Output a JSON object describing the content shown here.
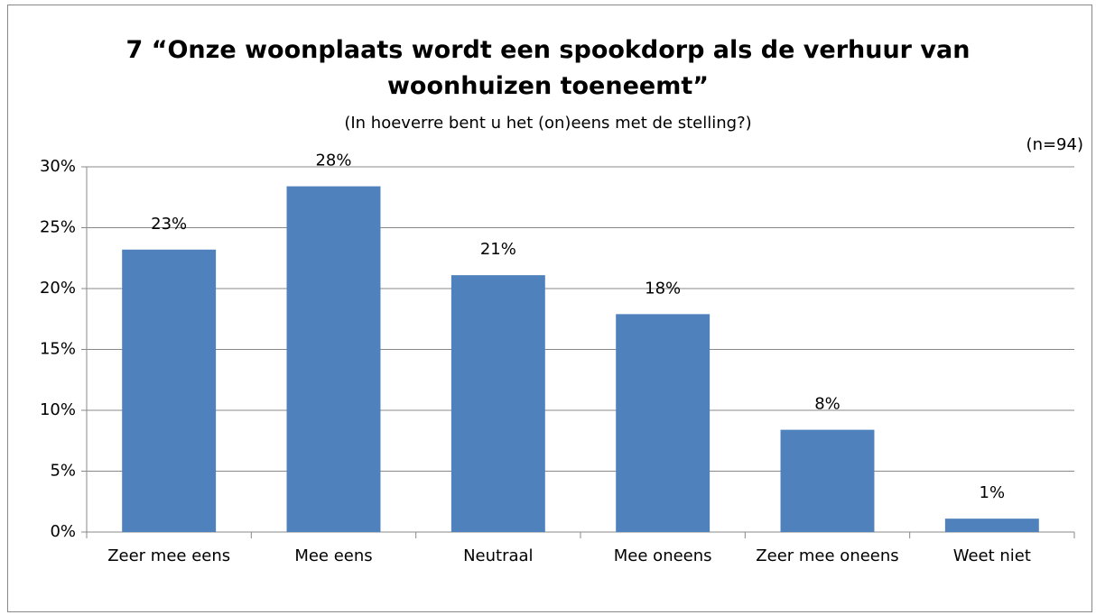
{
  "chart_data": {
    "type": "bar",
    "title": "7 “Onze woonplaats wordt een spookdorp als de verhuur van woonhuizen toeneemt”",
    "subtitle": "(In hoeverre bent u het (on)eens met de stelling?)",
    "annotation": "(n=94)",
    "categories": [
      "Zeer mee eens",
      "Mee eens",
      "Neutraal",
      "Mee oneens",
      "Zeer mee oneens",
      "Weet niet"
    ],
    "values": [
      23.2,
      28.4,
      21.1,
      17.9,
      8.4,
      1.1
    ],
    "value_labels": [
      "23%",
      "28%",
      "21%",
      "18%",
      "8%",
      "1%"
    ],
    "color": "#4f81bd",
    "ylim": [
      0,
      30
    ],
    "yticks": [
      {
        "value": 0,
        "label": "0%"
      },
      {
        "value": 5,
        "label": "5%"
      },
      {
        "value": 10,
        "label": "10%"
      },
      {
        "value": 15,
        "label": "15%"
      },
      {
        "value": 20,
        "label": "20%"
      },
      {
        "value": 25,
        "label": "25%"
      },
      {
        "value": 30,
        "label": "30%"
      }
    ],
    "grid": true
  }
}
